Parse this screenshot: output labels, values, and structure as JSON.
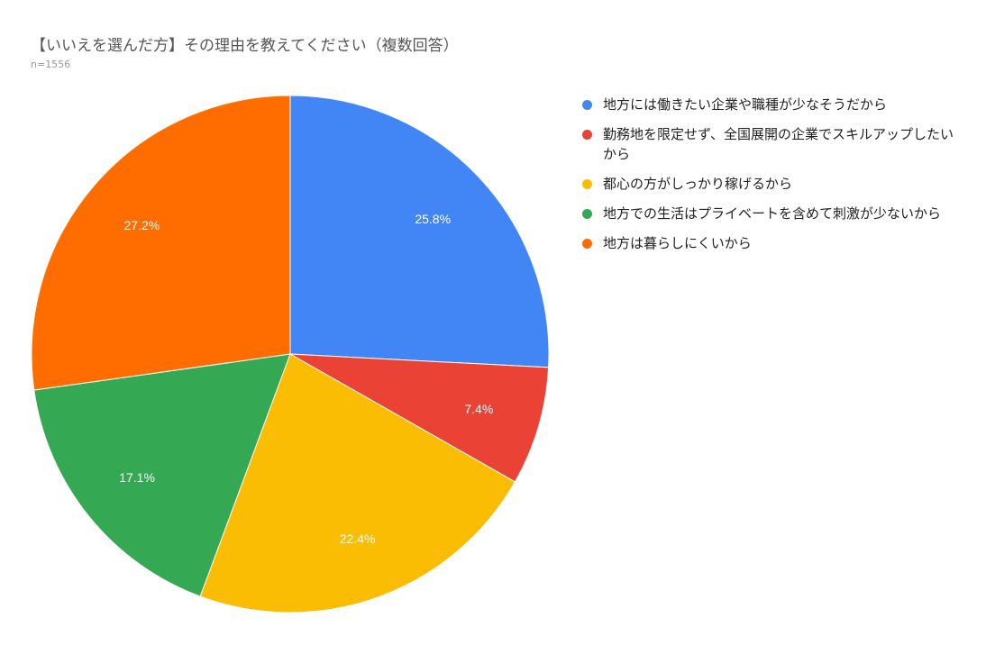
{
  "chart_data": {
    "type": "pie",
    "title": "【いいえを選んだ方】その理由を教えてください（複数回答）",
    "subtitle": "n=1556",
    "legend_position": "right",
    "series": [
      {
        "name": "地方には働きたい企業や職種が少なそうだから",
        "value": 25.8,
        "label": "25.8%",
        "color": "#4285f4"
      },
      {
        "name": "勤務地を限定せず、全国展開の企業でスキルアップしたいから",
        "value": 7.4,
        "label": "7.4%",
        "color": "#ea4335"
      },
      {
        "name": "都心の方がしっかり稼げるから",
        "value": 22.4,
        "label": "22.4%",
        "color": "#fbbc04"
      },
      {
        "name": "地方での生活はプライベートを含めて刺激が少ないから",
        "value": 17.1,
        "label": "17.1%",
        "color": "#34a853"
      },
      {
        "name": "地方は暮らしにくいから",
        "value": 27.2,
        "label": "27.2%",
        "color": "#ff6d01"
      }
    ]
  }
}
